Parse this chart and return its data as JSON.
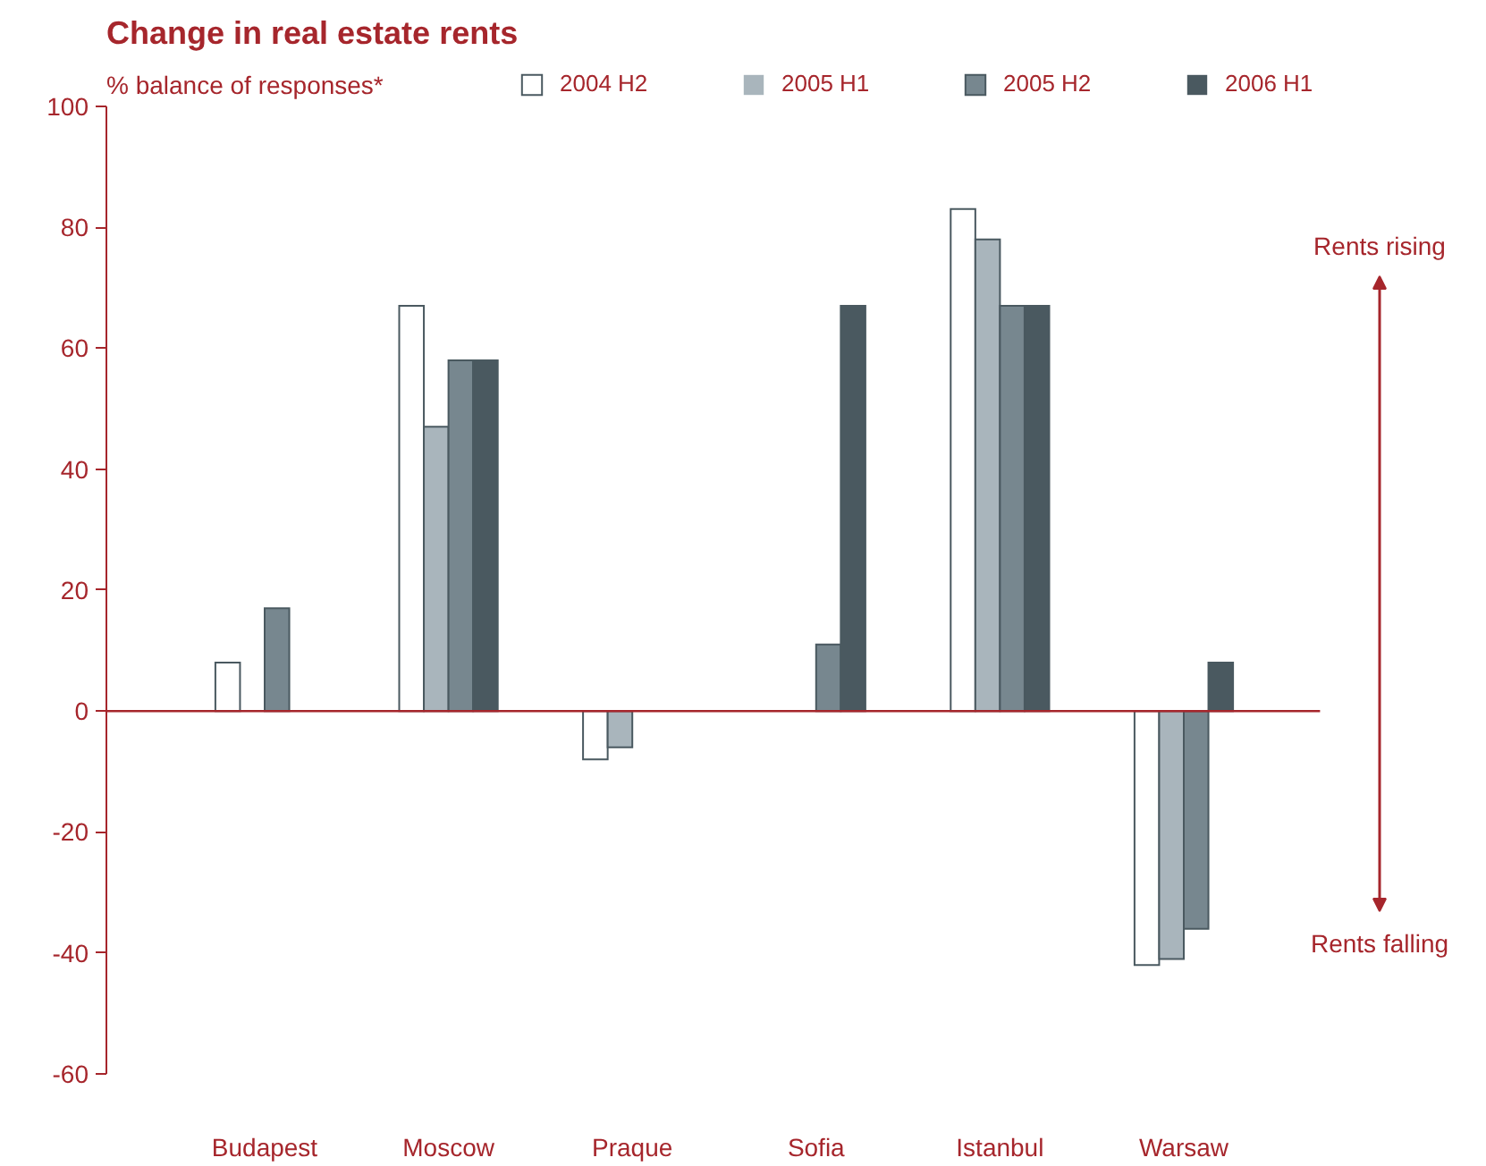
{
  "chart_data": {
    "type": "bar",
    "title": "Change in real estate rents",
    "ylabel": "% balance of responses*",
    "categories": [
      "Budapest",
      "Moscow",
      "Praque",
      "Sofia",
      "Istanbul",
      "Warsaw"
    ],
    "series": [
      {
        "name": "2004 H2",
        "color": "#ffffff",
        "values": [
          8,
          67,
          -8,
          0,
          83,
          -42
        ]
      },
      {
        "name": "2005 H1",
        "color": "#a9b5bc",
        "values": [
          0,
          47,
          -6,
          0,
          78,
          -41
        ]
      },
      {
        "name": "2005 H2",
        "color": "#77878f",
        "values": [
          17,
          58,
          0,
          11,
          67,
          -36
        ]
      },
      {
        "name": "2006 H1",
        "color": "#4a5960",
        "values": [
          0,
          58,
          0,
          67,
          67,
          8
        ]
      }
    ],
    "ylim": [
      -60,
      100
    ],
    "yticks": [
      -60,
      -40,
      -20,
      0,
      20,
      40,
      60,
      80,
      100
    ],
    "legend": "top",
    "ref_lines": [
      {
        "axis": "y",
        "value": 0,
        "color": "#a6262c"
      }
    ],
    "annotations": [
      "Rents rising",
      "Rents falling"
    ]
  }
}
